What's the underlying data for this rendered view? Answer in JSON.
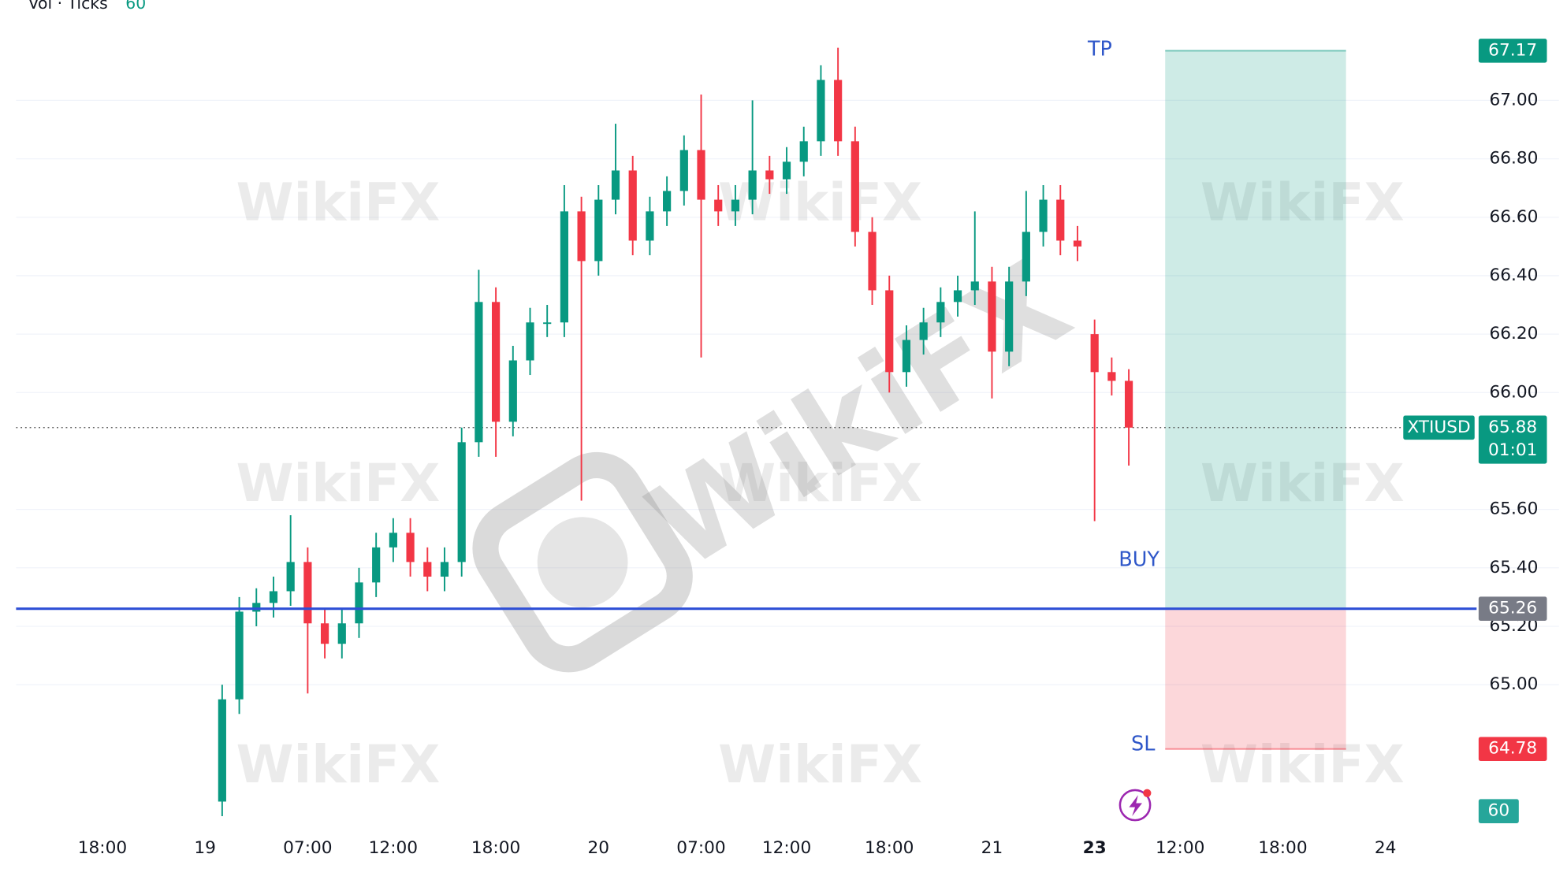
{
  "watermark": "WikiFX",
  "chart_data": {
    "type": "candlestick",
    "symbol": "XTIUSD",
    "last_price": 65.88,
    "countdown": "01:01",
    "volume_label": "Vol · Ticks",
    "volume_value": 60,
    "up_color": "#089981",
    "down_color": "#f23645",
    "grid": true,
    "categories": [
      null,
      null,
      null,
      null,
      null,
      "18:00",
      null,
      null,
      null,
      null,
      null,
      "19",
      null,
      null,
      null,
      null,
      null,
      "07:00",
      null,
      null,
      null,
      null,
      "12:00",
      null,
      null,
      null,
      null,
      null,
      "18:00",
      null,
      null,
      null,
      null,
      null,
      "20",
      null,
      null,
      null,
      null,
      null,
      "07:00",
      null,
      null,
      null,
      null,
      "12:00",
      null,
      null,
      null,
      null,
      null,
      "18:00",
      null,
      null,
      null,
      null,
      null,
      "21",
      null,
      null,
      null,
      null,
      null,
      "23",
      null,
      null,
      null,
      null,
      "12:00",
      null,
      null,
      null,
      null,
      null,
      "18:00",
      null,
      null,
      null,
      null,
      null,
      "24"
    ],
    "open": [
      null,
      null,
      null,
      null,
      null,
      null,
      null,
      null,
      null,
      null,
      null,
      null,
      64.6,
      64.95,
      65.25,
      65.28,
      65.32,
      65.42,
      65.21,
      65.14,
      65.21,
      65.35,
      65.47,
      65.52,
      65.42,
      65.37,
      65.42,
      65.83,
      66.31,
      65.9,
      66.11,
      66.24,
      66.24,
      66.62,
      66.45,
      66.66,
      66.76,
      66.52,
      66.62,
      66.69,
      66.83,
      66.66,
      66.62,
      66.66,
      66.76,
      66.73,
      66.79,
      66.86,
      67.07,
      66.86,
      66.55,
      66.35,
      66.07,
      66.18,
      66.24,
      66.31,
      66.35,
      66.38,
      66.14,
      66.38,
      66.55,
      66.66,
      66.52,
      66.2,
      66.07,
      66.04,
      null,
      null,
      null,
      null,
      null,
      null,
      null,
      null,
      null,
      null,
      null,
      null,
      null,
      null,
      null
    ],
    "high": [
      null,
      null,
      null,
      null,
      null,
      null,
      null,
      null,
      null,
      null,
      null,
      null,
      65.0,
      65.3,
      65.33,
      65.37,
      65.58,
      65.47,
      65.26,
      65.26,
      65.4,
      65.52,
      65.57,
      65.57,
      65.47,
      65.47,
      65.88,
      66.42,
      66.36,
      66.16,
      66.29,
      66.3,
      66.71,
      66.67,
      66.71,
      66.92,
      66.81,
      66.67,
      66.74,
      66.88,
      67.02,
      66.71,
      66.71,
      67.0,
      66.81,
      66.84,
      66.91,
      67.12,
      67.18,
      66.91,
      66.6,
      66.4,
      66.23,
      66.29,
      66.36,
      66.4,
      66.62,
      66.43,
      66.43,
      66.69,
      66.71,
      66.71,
      66.57,
      66.25,
      66.12,
      66.08,
      null,
      null,
      null,
      null,
      null,
      null,
      null,
      null,
      null,
      null,
      null,
      null,
      null,
      null,
      null
    ],
    "low": [
      null,
      null,
      null,
      null,
      null,
      null,
      null,
      null,
      null,
      null,
      null,
      null,
      64.55,
      64.9,
      65.2,
      65.23,
      65.27,
      64.97,
      65.09,
      65.09,
      65.16,
      65.3,
      65.42,
      65.37,
      65.32,
      65.32,
      65.37,
      65.78,
      65.78,
      65.85,
      66.06,
      66.19,
      66.19,
      65.63,
      66.4,
      66.61,
      66.47,
      66.47,
      66.57,
      66.64,
      66.12,
      66.57,
      66.57,
      66.61,
      66.68,
      66.68,
      66.74,
      66.81,
      66.81,
      66.5,
      66.3,
      66.0,
      66.02,
      66.13,
      66.19,
      66.26,
      66.3,
      65.98,
      66.09,
      66.33,
      66.5,
      66.47,
      66.45,
      65.56,
      65.99,
      65.75,
      null,
      null,
      null,
      null,
      null,
      null,
      null,
      null,
      null,
      null,
      null,
      null,
      null,
      null,
      null
    ],
    "close": [
      null,
      null,
      null,
      null,
      null,
      null,
      null,
      null,
      null,
      null,
      null,
      null,
      64.95,
      65.25,
      65.28,
      65.32,
      65.42,
      65.21,
      65.14,
      65.21,
      65.35,
      65.47,
      65.52,
      65.42,
      65.37,
      65.42,
      65.83,
      66.31,
      65.9,
      66.11,
      66.24,
      66.24,
      66.62,
      66.45,
      66.66,
      66.76,
      66.52,
      66.62,
      66.69,
      66.83,
      66.66,
      66.62,
      66.66,
      66.76,
      66.73,
      66.79,
      66.86,
      67.07,
      66.86,
      66.55,
      66.35,
      66.07,
      66.18,
      66.24,
      66.31,
      66.35,
      66.38,
      66.14,
      66.38,
      66.55,
      66.66,
      66.52,
      66.5,
      66.07,
      66.04,
      65.88,
      null,
      null,
      null,
      null,
      null,
      null,
      null,
      null,
      null,
      null,
      null,
      null,
      null,
      null,
      null
    ],
    "ylim": [
      64.53,
      67.28
    ],
    "yticks": [
      {
        "value": 65,
        "label": "65.00"
      },
      {
        "value": 65.2,
        "label": "65.20"
      },
      {
        "value": 65.4,
        "label": "65.40"
      },
      {
        "value": 65.6,
        "label": "65.60"
      },
      {
        "value": 66,
        "label": "66.00"
      },
      {
        "value": 66.2,
        "label": "66.20"
      },
      {
        "value": 66.4,
        "label": "66.40"
      },
      {
        "value": 66.6,
        "label": "66.60"
      },
      {
        "value": 66.8,
        "label": "66.80"
      },
      {
        "value": 67,
        "label": "67.00"
      }
    ],
    "position": {
      "entry": 65.26,
      "take_profit": 67.17,
      "stop_loss": 64.78,
      "entry_label": "BUY",
      "tp_label": "TP",
      "sl_label": "SL"
    }
  }
}
